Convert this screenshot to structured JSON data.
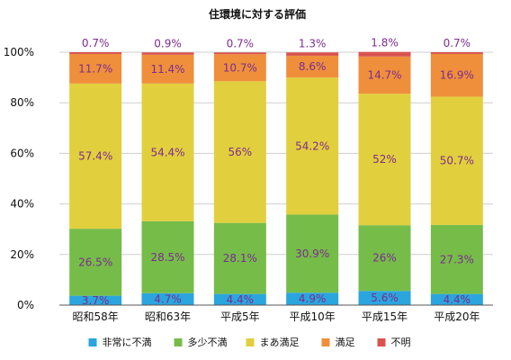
{
  "chart_data": {
    "type": "bar",
    "stacked": true,
    "title": "住環境に対する評価",
    "categories": [
      "昭和58年",
      "昭和63年",
      "平成5年",
      "平成10年",
      "平成15年",
      "平成20年"
    ],
    "yticks": [
      "0%",
      "20%",
      "40%",
      "60%",
      "80%",
      "100%"
    ],
    "ylim": [
      0,
      100
    ],
    "grid": true,
    "legend_position": "bottom",
    "series": [
      {
        "name": "非常に不満",
        "color": "#2aa5de",
        "values": [
          3.7,
          4.7,
          4.4,
          4.9,
          5.6,
          4.4
        ],
        "labels": [
          "3.7%",
          "4.7%",
          "4.4%",
          "4.9%",
          "5.6%",
          "4.4%"
        ]
      },
      {
        "name": "多少不満",
        "color": "#76bc49",
        "values": [
          26.5,
          28.5,
          28.1,
          30.9,
          26,
          27.3
        ],
        "labels": [
          "26.5%",
          "28.5%",
          "28.1%",
          "30.9%",
          "26%",
          "27.3%"
        ]
      },
      {
        "name": "まあ満足",
        "color": "#e2cf3d",
        "values": [
          57.4,
          54.4,
          56,
          54.2,
          52,
          50.7
        ],
        "labels": [
          "57.4%",
          "54.4%",
          "56%",
          "54.2%",
          "52%",
          "50.7%"
        ]
      },
      {
        "name": "満足",
        "color": "#ef8f3c",
        "values": [
          11.7,
          11.4,
          10.7,
          8.6,
          14.7,
          16.9
        ],
        "labels": [
          "11.7%",
          "11.4%",
          "10.7%",
          "8.6%",
          "14.7%",
          "16.9%"
        ]
      },
      {
        "name": "不明",
        "color": "#d9534f",
        "values": [
          0.7,
          0.9,
          0.7,
          1.3,
          1.8,
          0.7
        ],
        "labels": [
          "0.7%",
          "0.9%",
          "0.7%",
          "1.3%",
          "1.8%",
          "0.7%"
        ]
      }
    ]
  }
}
